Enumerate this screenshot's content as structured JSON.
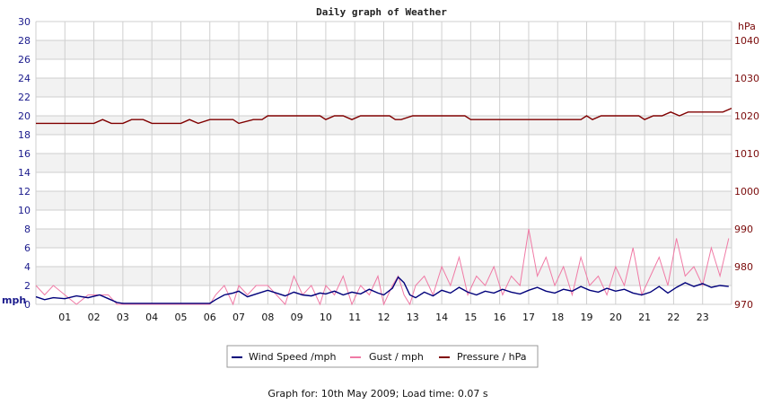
{
  "chart_data": {
    "type": "line",
    "title": "Daily graph of Weather",
    "left_axis": {
      "unit": "mph",
      "min": 0,
      "max": 30,
      "ticks": [
        0,
        2,
        4,
        6,
        8,
        10,
        12,
        14,
        16,
        18,
        20,
        22,
        24,
        26,
        28,
        30
      ]
    },
    "right_axis": {
      "unit": "hPa",
      "min": 970,
      "max": 1045,
      "ticks": [
        970,
        980,
        990,
        1000,
        1010,
        1020,
        1030,
        1040
      ]
    },
    "x_axis": {
      "min": 0,
      "max": 24,
      "ticks": [
        "01",
        "02",
        "03",
        "04",
        "05",
        "06",
        "07",
        "08",
        "09",
        "10",
        "11",
        "12",
        "13",
        "14",
        "15",
        "16",
        "17",
        "18",
        "19",
        "20",
        "21",
        "22",
        "23"
      ]
    },
    "grid": true,
    "colors": {
      "wind": "#00007a",
      "gust": "#f07aa5",
      "pressure": "#800000",
      "band": "#f2f2f2",
      "grid": "#cfcfcf"
    },
    "series": [
      {
        "name": "Wind Speed /mph",
        "axis": "left",
        "color": "#00007a",
        "x": [
          0,
          0.3,
          0.6,
          1.0,
          1.4,
          1.8,
          2.2,
          2.5,
          2.8,
          3.0,
          3.5,
          4.0,
          5.0,
          6.0,
          6.2,
          6.5,
          6.8,
          7.0,
          7.3,
          7.6,
          8.0,
          8.3,
          8.6,
          8.9,
          9.2,
          9.5,
          9.8,
          10.0,
          10.3,
          10.6,
          10.9,
          11.2,
          11.5,
          11.8,
          12.0,
          12.3,
          12.5,
          12.7,
          12.9,
          13.1,
          13.4,
          13.7,
          14.0,
          14.3,
          14.6,
          14.9,
          15.2,
          15.5,
          15.8,
          16.1,
          16.4,
          16.7,
          17.0,
          17.3,
          17.6,
          17.9,
          18.2,
          18.5,
          18.8,
          19.1,
          19.4,
          19.7,
          20.0,
          20.3,
          20.6,
          20.9,
          21.2,
          21.5,
          21.8,
          22.1,
          22.4,
          22.7,
          23.0,
          23.3,
          23.6,
          23.9
        ],
        "y": [
          0.8,
          0.5,
          0.7,
          0.6,
          0.9,
          0.7,
          1.0,
          0.6,
          0.2,
          0.1,
          0.1,
          0.1,
          0.1,
          0.1,
          0.5,
          1.0,
          1.2,
          1.4,
          0.8,
          1.1,
          1.5,
          1.2,
          0.9,
          1.3,
          1.0,
          0.9,
          1.2,
          1.1,
          1.4,
          1.0,
          1.3,
          1.1,
          1.6,
          1.2,
          1.0,
          1.7,
          2.9,
          2.3,
          1.0,
          0.7,
          1.3,
          0.9,
          1.5,
          1.2,
          1.8,
          1.3,
          1.0,
          1.4,
          1.2,
          1.6,
          1.3,
          1.1,
          1.5,
          1.8,
          1.4,
          1.2,
          1.6,
          1.4,
          1.9,
          1.5,
          1.3,
          1.7,
          1.4,
          1.6,
          1.2,
          1.0,
          1.3,
          1.9,
          1.2,
          1.8,
          2.3,
          1.9,
          2.2,
          1.8,
          2.0,
          1.9
        ]
      },
      {
        "name": "Gust / mph",
        "axis": "left",
        "color": "#f07aa5",
        "x": [
          0,
          0.3,
          0.6,
          1.0,
          1.4,
          1.8,
          2.2,
          2.5,
          2.8,
          3.0,
          3.5,
          4.0,
          5.0,
          6.0,
          6.2,
          6.5,
          6.8,
          7.0,
          7.3,
          7.6,
          8.0,
          8.3,
          8.6,
          8.9,
          9.2,
          9.5,
          9.8,
          10.0,
          10.3,
          10.6,
          10.9,
          11.2,
          11.5,
          11.8,
          12.0,
          12.3,
          12.5,
          12.7,
          12.9,
          13.1,
          13.4,
          13.7,
          14.0,
          14.3,
          14.6,
          14.9,
          15.2,
          15.5,
          15.8,
          16.1,
          16.4,
          16.7,
          17.0,
          17.3,
          17.6,
          17.9,
          18.2,
          18.5,
          18.8,
          19.1,
          19.4,
          19.7,
          20.0,
          20.3,
          20.6,
          20.9,
          21.2,
          21.5,
          21.8,
          22.1,
          22.4,
          22.7,
          23.0,
          23.3,
          23.6,
          23.9
        ],
        "y": [
          2,
          1,
          2,
          1,
          0,
          1,
          1,
          1,
          0,
          0,
          0,
          0,
          0,
          0,
          1,
          2,
          0,
          2,
          1,
          2,
          2,
          1,
          0,
          3,
          1,
          2,
          0,
          2,
          1,
          3,
          0,
          2,
          1,
          3,
          0,
          2,
          3,
          1,
          0,
          2,
          3,
          1,
          4,
          2,
          5,
          1,
          3,
          2,
          4,
          1,
          3,
          2,
          8,
          3,
          5,
          2,
          4,
          1,
          5,
          2,
          3,
          1,
          4,
          2,
          6,
          1,
          3,
          5,
          2,
          7,
          3,
          4,
          2,
          6,
          3,
          7
        ]
      },
      {
        "name": "Pressure / hPa",
        "axis": "right",
        "color": "#800000",
        "x": [
          0,
          0.5,
          1.0,
          1.5,
          2.0,
          2.3,
          2.6,
          3.0,
          3.3,
          3.7,
          4.0,
          4.5,
          5.0,
          5.3,
          5.6,
          6.0,
          6.5,
          6.8,
          7.0,
          7.5,
          7.8,
          8.0,
          8.5,
          9.0,
          9.5,
          9.8,
          10.0,
          10.3,
          10.6,
          10.9,
          11.2,
          11.5,
          12.0,
          12.2,
          12.4,
          12.6,
          13.0,
          13.5,
          14.0,
          14.5,
          14.8,
          15.0,
          15.5,
          16.0,
          16.5,
          17.0,
          17.5,
          18.0,
          18.5,
          18.8,
          19.0,
          19.2,
          19.5,
          20.0,
          20.5,
          20.8,
          21.0,
          21.3,
          21.6,
          21.9,
          22.2,
          22.5,
          23.0,
          23.5,
          23.7,
          24.0
        ],
        "y": [
          1018,
          1018,
          1018,
          1018,
          1018,
          1019,
          1018,
          1018,
          1019,
          1019,
          1018,
          1018,
          1018,
          1019,
          1018,
          1019,
          1019,
          1019,
          1018,
          1019,
          1019,
          1020,
          1020,
          1020,
          1020,
          1020,
          1019,
          1020,
          1020,
          1019,
          1020,
          1020,
          1020,
          1020,
          1019,
          1019,
          1020,
          1020,
          1020,
          1020,
          1020,
          1019,
          1019,
          1019,
          1019,
          1019,
          1019,
          1019,
          1019,
          1019,
          1020,
          1019,
          1020,
          1020,
          1020,
          1020,
          1019,
          1020,
          1020,
          1021,
          1020,
          1021,
          1021,
          1021,
          1021,
          1022
        ]
      }
    ]
  },
  "footer_text": "Graph for: 10th May 2009; Load time: 0.07 s"
}
